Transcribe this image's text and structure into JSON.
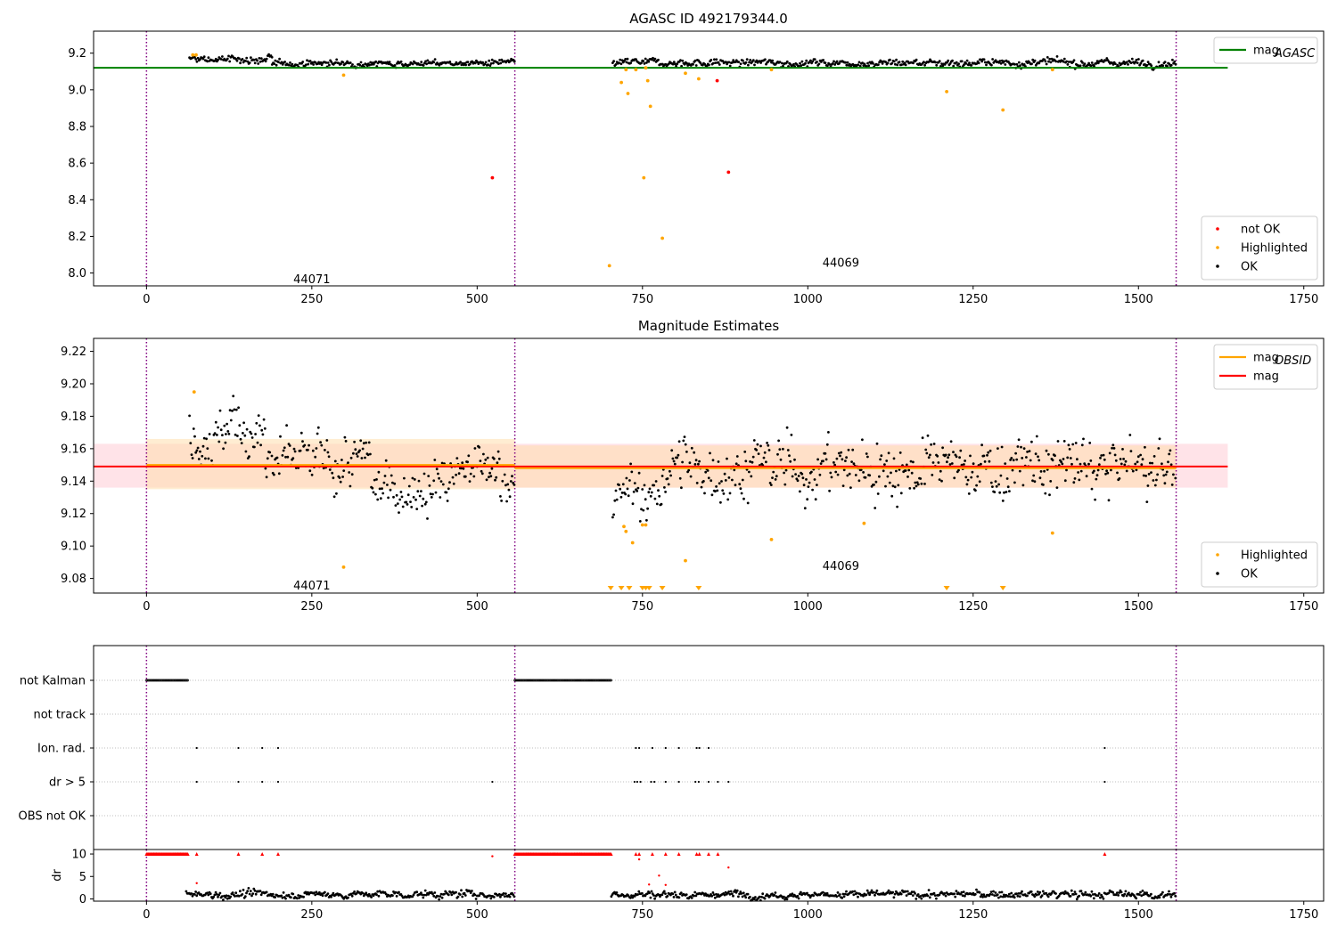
{
  "chart_data": [
    {
      "type": "scatter",
      "panel": "agasc",
      "title": "AGASC ID 492179344.0",
      "xlim": [
        -80,
        1780
      ],
      "ylim": [
        7.93,
        9.32
      ],
      "xticks": [
        0,
        250,
        500,
        750,
        1000,
        1250,
        1500,
        1750
      ],
      "xtick_labels": [
        "0",
        "250",
        "500",
        "750",
        "1000",
        "1250",
        "1500",
        "1750"
      ],
      "yticks": [
        8.0,
        8.2,
        8.4,
        8.6,
        8.8,
        9.0,
        9.2
      ],
      "ytick_labels": [
        "8.0",
        "8.2",
        "8.4",
        "8.6",
        "8.8",
        "9.0",
        "9.2"
      ],
      "vlines": [
        0,
        557,
        1557
      ],
      "obsid_labels": [
        {
          "text": "44071",
          "x": 250,
          "y": 7.97
        },
        {
          "text": "44069",
          "x": 1050,
          "y": 8.06
        }
      ],
      "hlines": [
        {
          "name": "mag_AGASC",
          "y": 9.12,
          "x0": -80,
          "x1": 1635,
          "color": "#008000"
        }
      ],
      "legend_top": {
        "position": "top-right",
        "entries": [
          {
            "label": "mag",
            "sub": "AGASC",
            "color": "#008000"
          }
        ]
      },
      "legend_bottom": {
        "position": "bottom-right",
        "entries": [
          {
            "label": "not OK",
            "color": "#ff0000"
          },
          {
            "label": "Highlighted",
            "color": "#ffa500"
          },
          {
            "label": "OK",
            "color": "#000000"
          }
        ]
      },
      "ok_segments": [
        {
          "x0": 65,
          "x1": 190,
          "mean": 9.165,
          "noise": 0.012
        },
        {
          "x0": 190,
          "x1": 557,
          "mean": 9.145,
          "noise": 0.009
        },
        {
          "x0": 705,
          "x1": 1557,
          "mean": 9.148,
          "noise": 0.011
        }
      ],
      "highlighted": [
        [
          70,
          9.19
        ],
        [
          75,
          9.19
        ],
        [
          298,
          9.08
        ],
        [
          700,
          8.04
        ],
        [
          718,
          9.04
        ],
        [
          725,
          9.11
        ],
        [
          728,
          8.98
        ],
        [
          740,
          9.11
        ],
        [
          752,
          8.52
        ],
        [
          755,
          9.12
        ],
        [
          758,
          9.05
        ],
        [
          762,
          8.91
        ],
        [
          780,
          8.19
        ],
        [
          815,
          9.09
        ],
        [
          835,
          9.06
        ],
        [
          945,
          9.11
        ],
        [
          1210,
          8.99
        ],
        [
          1295,
          8.89
        ],
        [
          1370,
          9.11
        ]
      ],
      "not_ok": [
        [
          523,
          8.52
        ],
        [
          863,
          9.05
        ],
        [
          880,
          8.55
        ]
      ],
      "colors": {
        "ok": "#000000",
        "highlighted": "#ffa500",
        "not_ok": "#ff0000",
        "vline": "#800080"
      }
    },
    {
      "type": "scatter",
      "panel": "estimates",
      "title": "Magnitude Estimates",
      "xlim": [
        -80,
        1780
      ],
      "ylim": [
        9.071,
        9.228
      ],
      "xticks": [
        0,
        250,
        500,
        750,
        1000,
        1250,
        1500,
        1750
      ],
      "xtick_labels": [
        "0",
        "250",
        "500",
        "750",
        "1000",
        "1250",
        "1500",
        "1750"
      ],
      "yticks": [
        9.08,
        9.1,
        9.12,
        9.14,
        9.16,
        9.18,
        9.2,
        9.22
      ],
      "ytick_labels": [
        "9.08",
        "9.10",
        "9.12",
        "9.14",
        "9.16",
        "9.18",
        "9.20",
        "9.22"
      ],
      "vlines": [
        0,
        557,
        1557
      ],
      "obsid_labels": [
        {
          "text": "44071",
          "x": 250,
          "y": 9.076
        },
        {
          "text": "44069",
          "x": 1050,
          "y": 9.088
        }
      ],
      "bands": [
        {
          "name": "mag band",
          "x0": -80,
          "x1": 1635,
          "y0": 9.136,
          "y1": 9.163,
          "color": "#ffc0cb",
          "opacity": 0.45
        },
        {
          "name": "obsid 44071 band",
          "x0": 0,
          "x1": 557,
          "y0": 9.135,
          "y1": 9.166,
          "color": "#ffdead",
          "opacity": 0.55
        },
        {
          "name": "obsid 44069 band",
          "x0": 557,
          "x1": 1557,
          "y0": 9.136,
          "y1": 9.162,
          "color": "#ffdead",
          "opacity": 0.55
        }
      ],
      "hlines": [
        {
          "name": "mag",
          "y": 9.149,
          "x0": -80,
          "x1": 1635,
          "color": "#ff0000"
        },
        {
          "name": "mag_OBSID 44071",
          "y": 9.15,
          "x0": 0,
          "x1": 557,
          "color": "#ffa500"
        },
        {
          "name": "mag_OBSID 44069",
          "y": 9.148,
          "x0": 557,
          "x1": 1557,
          "color": "#ffa500"
        }
      ],
      "legend_top": {
        "position": "top-right",
        "entries": [
          {
            "label": "mag",
            "sub": "OBSID",
            "color": "#ffa500"
          },
          {
            "label": "mag",
            "sub": "",
            "color": "#ff0000"
          }
        ]
      },
      "legend_bottom": {
        "position": "bottom-right",
        "entries": [
          {
            "label": "Highlighted",
            "color": "#ffa500"
          },
          {
            "label": "OK",
            "color": "#000000"
          }
        ]
      },
      "ok_segments": [
        {
          "x0": 65,
          "x1": 120,
          "mean": 9.168,
          "noise": 0.008
        },
        {
          "x0": 120,
          "x1": 180,
          "mean": 9.172,
          "noise": 0.009
        },
        {
          "x0": 180,
          "x1": 340,
          "mean": 9.15,
          "noise": 0.009
        },
        {
          "x0": 340,
          "x1": 460,
          "mean": 9.137,
          "noise": 0.008
        },
        {
          "x0": 460,
          "x1": 557,
          "mean": 9.145,
          "noise": 0.009
        },
        {
          "x0": 705,
          "x1": 780,
          "mean": 9.13,
          "noise": 0.009
        },
        {
          "x0": 780,
          "x1": 1557,
          "mean": 9.148,
          "noise": 0.01
        }
      ],
      "highlighted": [
        [
          72,
          9.195
        ],
        [
          298,
          9.087
        ],
        [
          722,
          9.112
        ],
        [
          725,
          9.109
        ],
        [
          735,
          9.102
        ],
        [
          750,
          9.113
        ],
        [
          755,
          9.113
        ],
        [
          815,
          9.091
        ],
        [
          945,
          9.104
        ],
        [
          1085,
          9.114
        ],
        [
          1370,
          9.108
        ]
      ],
      "out_of_range_markers": [
        702,
        718,
        730,
        750,
        755,
        760,
        780,
        835,
        1210,
        1295
      ],
      "colors": {
        "ok": "#000000",
        "highlighted": "#ffa500",
        "vline": "#800080"
      }
    },
    {
      "type": "scatter",
      "panel": "flags",
      "xlim": [
        -80,
        1780
      ],
      "categories": [
        "not Kalman",
        "not track",
        "Ion. rad.",
        "dr > 5",
        "OBS not OK"
      ],
      "vlines": [
        0,
        557,
        1557
      ],
      "flag_spans": [
        {
          "category": "not Kalman",
          "x0": 0,
          "x1": 63
        },
        {
          "category": "not Kalman",
          "x0": 557,
          "x1": 703
        }
      ],
      "flag_points": [
        {
          "category": "Ion. rad.",
          "x": [
            76,
            139,
            175,
            199,
            740,
            745,
            765,
            785,
            805,
            832,
            836,
            850,
            1449
          ]
        },
        {
          "category": "dr > 5",
          "x": [
            76,
            139,
            175,
            199,
            523,
            738,
            742,
            747,
            763,
            768,
            785,
            805,
            830,
            835,
            850,
            864,
            880,
            1449
          ]
        }
      ],
      "colors": {
        "flag": "#000000",
        "grid": "#aaaaaa",
        "vline": "#800080"
      }
    },
    {
      "type": "scatter",
      "panel": "dr",
      "ylabel": "dr",
      "xlim": [
        -80,
        1780
      ],
      "ylim": [
        -0.5,
        11
      ],
      "xticks": [
        0,
        250,
        500,
        750,
        1000,
        1250,
        1500,
        1750
      ],
      "xtick_labels": [
        "0",
        "250",
        "500",
        "750",
        "1000",
        "1250",
        "1500",
        "1750"
      ],
      "yticks": [
        0,
        5,
        10
      ],
      "ytick_labels": [
        "0",
        "5",
        "10"
      ],
      "vlines": [
        0,
        557,
        1557
      ],
      "capped_spans": [
        {
          "x0": 0,
          "x1": 63,
          "y": 10
        },
        {
          "x0": 557,
          "x1": 703,
          "y": 10
        }
      ],
      "capped_points": [
        76,
        139,
        175,
        199,
        740,
        745,
        765,
        785,
        805,
        832,
        836,
        850,
        864,
        1449
      ],
      "red_points": [
        [
          76,
          3.5
        ],
        [
          523,
          9.5
        ],
        [
          745,
          8.8
        ],
        [
          760,
          3.2
        ],
        [
          775,
          5.2
        ],
        [
          785,
          3.1
        ],
        [
          880,
          7.0
        ]
      ],
      "ok_segments": [
        {
          "x0": 60,
          "x1": 557,
          "mean": 1.0,
          "noise": 0.45
        },
        {
          "x0": 703,
          "x1": 1557,
          "mean": 1.0,
          "noise": 0.45
        }
      ],
      "colors": {
        "ok": "#000000",
        "flagged": "#ff0000",
        "vline": "#800080"
      }
    }
  ]
}
